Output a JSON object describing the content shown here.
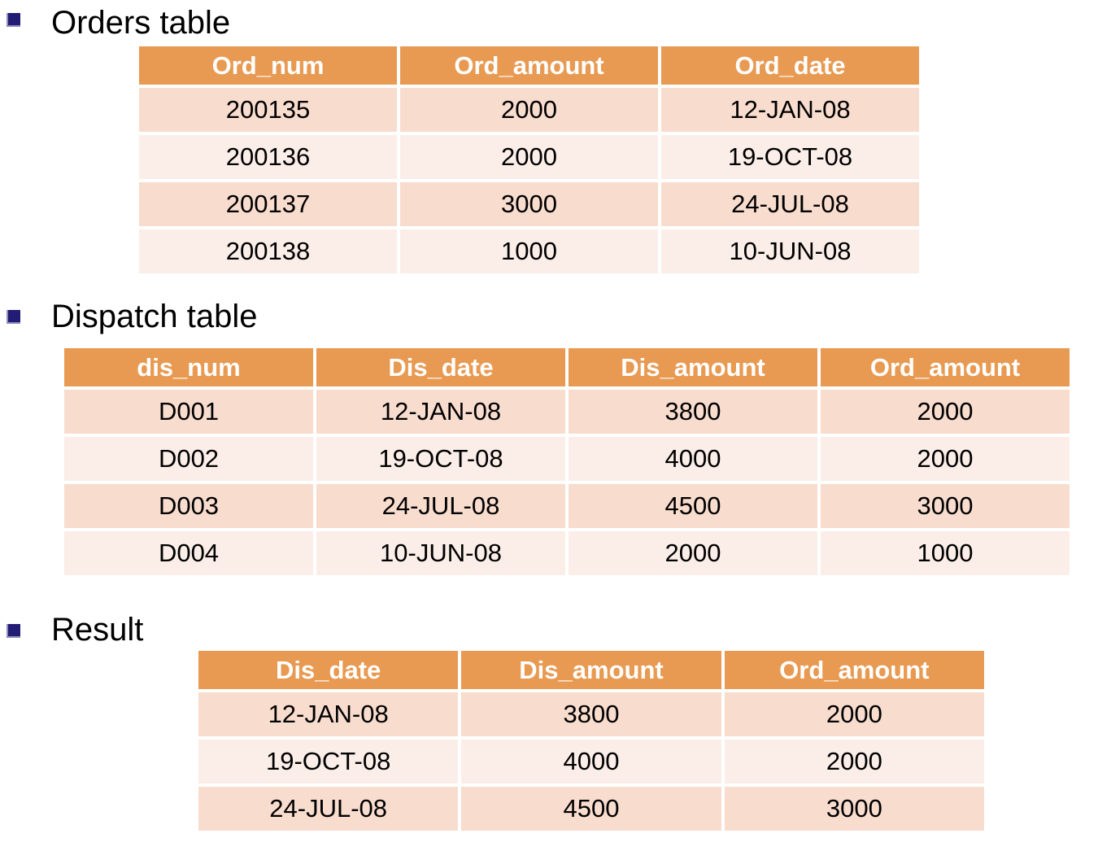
{
  "colors": {
    "header_bg": "#e89a52",
    "row_dark": "#f8dcce",
    "row_light": "#fbeee8",
    "header_text": "#ffffff",
    "body_text": "#000000",
    "bullet": "#221c75",
    "background": "#ffffff"
  },
  "sections": [
    {
      "title": "Orders table",
      "table": {
        "headers": [
          "Ord_num",
          "Ord_amount",
          "Ord_date"
        ],
        "rows": [
          [
            "200135",
            "2000",
            "12-JAN-08"
          ],
          [
            "200136",
            "2000",
            "19-OCT-08"
          ],
          [
            "200137",
            "3000",
            "24-JUL-08"
          ],
          [
            "200138",
            "1000",
            "10-JUN-08"
          ]
        ]
      }
    },
    {
      "title": "Dispatch table",
      "table": {
        "headers": [
          "dis_num",
          "Dis_date",
          "Dis_amount",
          "Ord_amount"
        ],
        "rows": [
          [
            "D001",
            "12-JAN-08",
            "3800",
            "2000"
          ],
          [
            "D002",
            "19-OCT-08",
            "4000",
            "2000"
          ],
          [
            "D003",
            "24-JUL-08",
            "4500",
            "3000"
          ],
          [
            "D004",
            "10-JUN-08",
            "2000",
            "1000"
          ]
        ]
      }
    },
    {
      "title": "Result",
      "table": {
        "headers": [
          "Dis_date",
          "Dis_amount",
          "Ord_amount"
        ],
        "rows": [
          [
            "12-JAN-08",
            "3800",
            "2000"
          ],
          [
            "19-OCT-08",
            "4000",
            "2000"
          ],
          [
            "24-JUL-08",
            "4500",
            "3000"
          ]
        ]
      }
    }
  ]
}
